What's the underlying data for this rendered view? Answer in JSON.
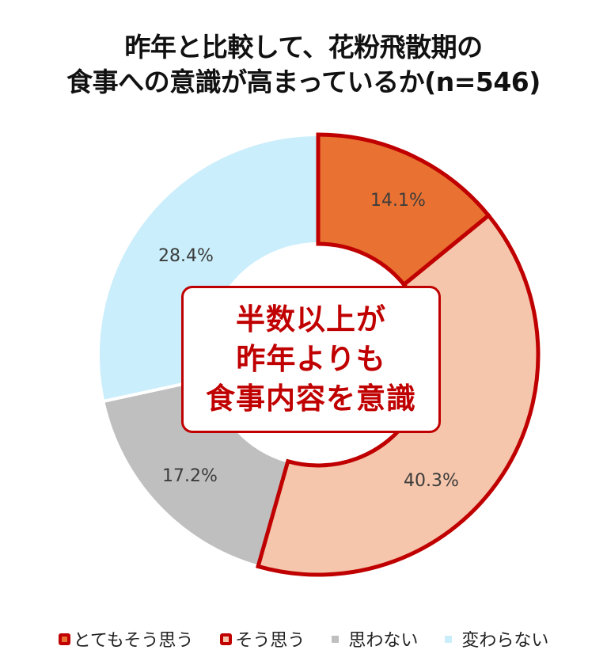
{
  "title": {
    "line1": "昨年と比較して、花粉飛散期の",
    "line2": "食事への意識が高まっているか(n=546)"
  },
  "callout": {
    "line1": "半数以上が",
    "line2": "昨年よりも",
    "line3": "食事内容を意識"
  },
  "legend": [
    {
      "label": "とてもそう思う",
      "color": "#e97132",
      "outlined": true
    },
    {
      "label": "そう思う",
      "color": "#f5c6ab",
      "outlined": true
    },
    {
      "label": "思わない",
      "color": "#bfbfbf",
      "outlined": false
    },
    {
      "label": "変わらない",
      "color": "#caeefb",
      "outlined": false
    }
  ],
  "colors": {
    "outline": "#c00000",
    "separator": "#ffffff"
  },
  "chart_data": {
    "type": "pie",
    "subtype": "donut",
    "title": "昨年と比較して、花粉飛散期の食事への意識が高まっているか(n=546)",
    "n": 546,
    "categories": [
      "とてもそう思う",
      "そう思う",
      "思わない",
      "変わらない"
    ],
    "values": [
      14.1,
      40.3,
      17.2,
      28.4
    ],
    "labels": [
      "14.1%",
      "40.3%",
      "17.2%",
      "28.4%"
    ],
    "colors": [
      "#e97132",
      "#f5c6ab",
      "#bfbfbf",
      "#caeefb"
    ],
    "start_angle_deg": 0,
    "direction": "clockwise",
    "highlighted": [
      "とてもそう思う",
      "そう思う"
    ],
    "annotation": "半数以上が昨年よりも食事内容を意識",
    "legend_position": "bottom"
  }
}
